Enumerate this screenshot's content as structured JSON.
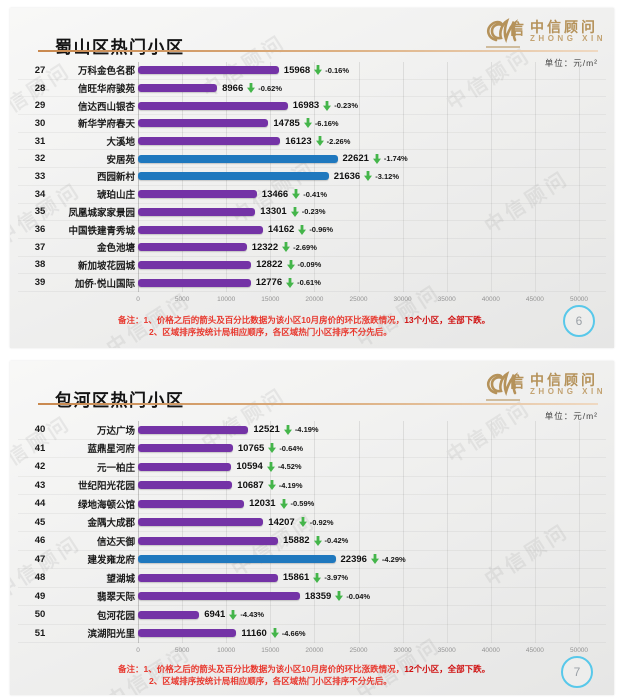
{
  "watermark_text": "中信顾问",
  "colors": {
    "purple": "#7433A6",
    "blue": "#1F78BE",
    "green_arrow": "#44B54A",
    "note_red": "#E8382E",
    "logo_gold": "#B5925A",
    "circle_blue": "#58C8EA",
    "title_underline": "#D9A86F"
  },
  "slides": [
    {
      "title": "蜀山区热门小区",
      "unit_label": "单位：元/m²",
      "logo": {
        "cn": "中信顾问",
        "en": "ZHONG XIN"
      },
      "notes": {
        "line1": "备注：1、价格之后的箭头及百分比数据为该小区10月房价的环比涨跌情况，",
        "line1_bold": "13个小区，全部下跌。",
        "line2": "2、区域排序按统计局相应顺序，各区域热门小区排序不分先后。"
      },
      "page_number": "6"
    },
    {
      "title": "包河区热门小区",
      "unit_label": "单位：元/m²",
      "logo": {
        "cn": "中信顾问",
        "en": "ZHONG XIN"
      },
      "notes": {
        "line1": "备注：1、价格之后的箭头及百分比数据为该小区10月房价的环比涨跌情况，",
        "line1_bold": "12个小区，全部下跌。",
        "line2": "2、区域排序按统计局相应顺序，各区域热门小区排序不分先后。"
      },
      "page_number": "7"
    }
  ],
  "chart_data": [
    {
      "type": "bar",
      "orientation": "horizontal",
      "title": "蜀山区热门小区",
      "unit": "元/m²",
      "x_axis": {
        "min": 0,
        "max": 50000,
        "ticks": [
          0,
          5000,
          10000,
          15000,
          20000,
          25000,
          30000,
          35000,
          40000,
          45000,
          50000
        ]
      },
      "grid": true,
      "rows": [
        {
          "rank": 27,
          "name": "万科金色名郡",
          "value": 15968,
          "change": "-0.16%",
          "direction": "down",
          "bar_color": "purple"
        },
        {
          "rank": 28,
          "name": "信旺华府骏苑",
          "value": 8966,
          "change": "-0.62%",
          "direction": "down",
          "bar_color": "purple"
        },
        {
          "rank": 29,
          "name": "信达西山银杏",
          "value": 16983,
          "change": "-0.23%",
          "direction": "down",
          "bar_color": "purple"
        },
        {
          "rank": 30,
          "name": "新华学府春天",
          "value": 14785,
          "change": "-6.16%",
          "direction": "down",
          "bar_color": "purple"
        },
        {
          "rank": 31,
          "name": "大溪地",
          "value": 16123,
          "change": "-2.26%",
          "direction": "down",
          "bar_color": "purple"
        },
        {
          "rank": 32,
          "name": "安居苑",
          "value": 22621,
          "change": "-1.74%",
          "direction": "down",
          "bar_color": "blue"
        },
        {
          "rank": 33,
          "name": "西园新村",
          "value": 21636,
          "change": "-3.12%",
          "direction": "down",
          "bar_color": "blue"
        },
        {
          "rank": 34,
          "name": "琥珀山庄",
          "value": 13466,
          "change": "-0.41%",
          "direction": "down",
          "bar_color": "purple"
        },
        {
          "rank": 35,
          "name": "凤凰城家家景园",
          "value": 13301,
          "change": "-0.23%",
          "direction": "down",
          "bar_color": "purple"
        },
        {
          "rank": 36,
          "name": "中国铁建青秀城",
          "value": 14162,
          "change": "-0.96%",
          "direction": "down",
          "bar_color": "purple"
        },
        {
          "rank": 37,
          "name": "金色池塘",
          "value": 12322,
          "change": "-2.69%",
          "direction": "down",
          "bar_color": "purple"
        },
        {
          "rank": 38,
          "name": "新加坡花园城",
          "value": 12822,
          "change": "-0.09%",
          "direction": "down",
          "bar_color": "purple"
        },
        {
          "rank": 39,
          "name": "加侨·悦山国际",
          "value": 12776,
          "change": "-0.61%",
          "direction": "down",
          "bar_color": "purple"
        }
      ]
    },
    {
      "type": "bar",
      "orientation": "horizontal",
      "title": "包河区热门小区",
      "unit": "元/m²",
      "x_axis": {
        "min": 0,
        "max": 50000,
        "ticks": [
          0,
          5000,
          10000,
          15000,
          20000,
          25000,
          30000,
          35000,
          40000,
          45000,
          50000
        ]
      },
      "grid": true,
      "rows": [
        {
          "rank": 40,
          "name": "万达广场",
          "value": 12521,
          "change": "-4.19%",
          "direction": "down",
          "bar_color": "purple"
        },
        {
          "rank": 41,
          "name": "蓝鼎星河府",
          "value": 10765,
          "change": "-0.64%",
          "direction": "down",
          "bar_color": "purple"
        },
        {
          "rank": 42,
          "name": "元一柏庄",
          "value": 10594,
          "change": "-4.52%",
          "direction": "down",
          "bar_color": "purple"
        },
        {
          "rank": 43,
          "name": "世纪阳光花园",
          "value": 10687,
          "change": "-4.19%",
          "direction": "down",
          "bar_color": "purple"
        },
        {
          "rank": 44,
          "name": "绿地海顿公馆",
          "value": 12031,
          "change": "-0.59%",
          "direction": "down",
          "bar_color": "purple"
        },
        {
          "rank": 45,
          "name": "金隅大成郡",
          "value": 14207,
          "change": "-0.92%",
          "direction": "down",
          "bar_color": "purple"
        },
        {
          "rank": 46,
          "name": "信达天御",
          "value": 15882,
          "change": "-0.42%",
          "direction": "down",
          "bar_color": "purple"
        },
        {
          "rank": 47,
          "name": "建发雍龙府",
          "value": 22396,
          "change": "-4.29%",
          "direction": "down",
          "bar_color": "blue"
        },
        {
          "rank": 48,
          "name": "望湖城",
          "value": 15861,
          "change": "-3.97%",
          "direction": "down",
          "bar_color": "purple"
        },
        {
          "rank": 49,
          "name": "翡翠天际",
          "value": 18359,
          "change": "-0.04%",
          "direction": "down",
          "bar_color": "purple"
        },
        {
          "rank": 50,
          "name": "包河花园",
          "value": 6941,
          "change": "-4.43%",
          "direction": "down",
          "bar_color": "purple"
        },
        {
          "rank": 51,
          "name": "滨湖阳光里",
          "value": 11160,
          "change": "-4.66%",
          "direction": "down",
          "bar_color": "purple"
        }
      ]
    }
  ]
}
